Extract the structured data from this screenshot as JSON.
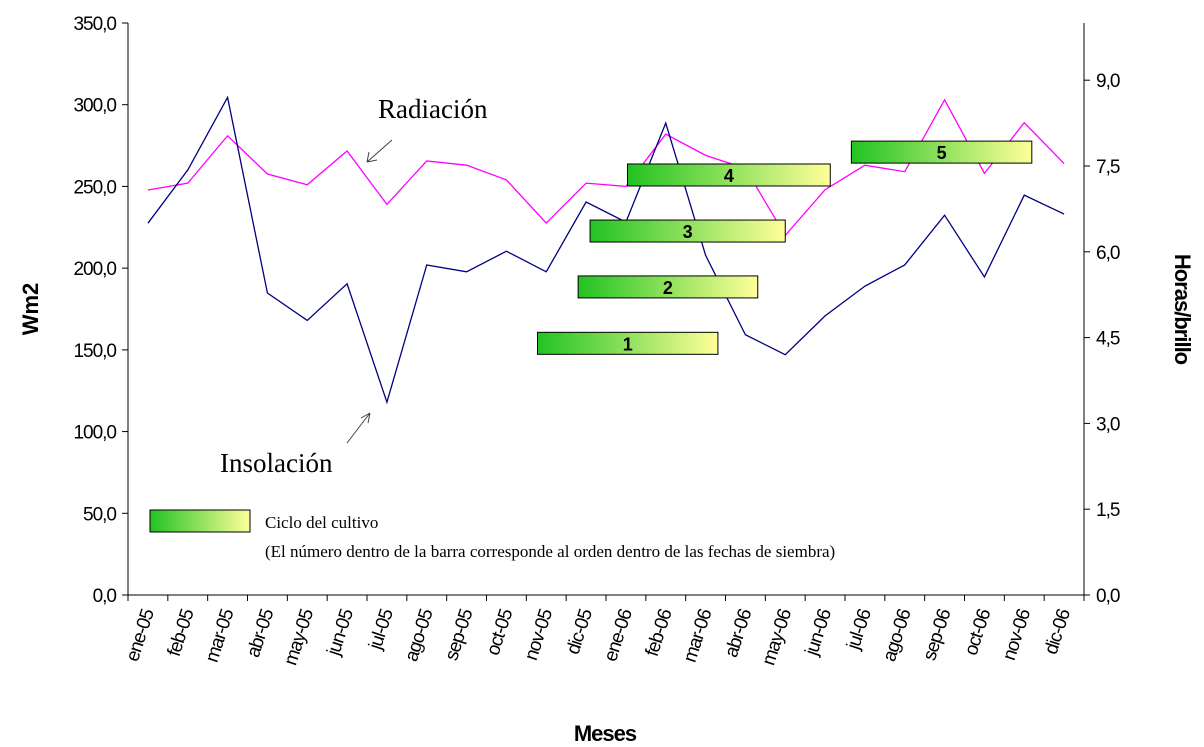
{
  "chart_data": {
    "type": "line",
    "y_label": "Wm2",
    "y2_label": "Horas/brillo",
    "x_label": "Meses",
    "categories": [
      "ene-05",
      "feb-05",
      "mar-05",
      "abr-05",
      "may-05",
      "jun-05",
      "jul-05",
      "ago-05",
      "sep-05",
      "oct-05",
      "nov-05",
      "dic-05",
      "ene-06",
      "feb-06",
      "mar-06",
      "abr-06",
      "may-06",
      "jun-06",
      "jul-06",
      "ago-06",
      "sep-06",
      "oct-06",
      "nov-06",
      "dic-06"
    ],
    "series": [
      {
        "name": "Radiación",
        "color": "#ff00ff",
        "axis": "y",
        "values": [
          247.8,
          252,
          281,
          257.6,
          251,
          271.7,
          239,
          265.6,
          263,
          254,
          227.6,
          252,
          250,
          282,
          269,
          261,
          220,
          248,
          263,
          259,
          303,
          258,
          289,
          264
        ]
      },
      {
        "name": "Insolación",
        "color": "#000080",
        "axis": "y2",
        "values": [
          6.5,
          7.43,
          8.7,
          5.28,
          4.8,
          5.44,
          3.37,
          5.77,
          5.65,
          6.01,
          5.65,
          6.87,
          6.52,
          8.25,
          5.94,
          4.55,
          4.2,
          4.88,
          5.4,
          5.77,
          6.64,
          5.56,
          6.99,
          6.66
        ]
      }
    ],
    "ylim": [
      0,
      350
    ],
    "yticks": [
      {
        "value": 0,
        "label": "0,0"
      },
      {
        "value": 50,
        "label": "50,0"
      },
      {
        "value": 100,
        "label": "100,0"
      },
      {
        "value": 150,
        "label": "150,0"
      },
      {
        "value": 200,
        "label": "200,0"
      },
      {
        "value": 250,
        "label": "250,0"
      },
      {
        "value": 300,
        "label": "300,0"
      },
      {
        "value": 350,
        "label": "350,0"
      }
    ],
    "y2lim": [
      0,
      10
    ],
    "y2ticks": [
      {
        "value": 0,
        "label": "0,0"
      },
      {
        "value": 1.5,
        "label": "1,5"
      },
      {
        "value": 3,
        "label": "3,0"
      },
      {
        "value": 4.5,
        "label": "4,5"
      },
      {
        "value": 6,
        "label": "6,0"
      },
      {
        "value": 7.5,
        "label": "7,5"
      },
      {
        "value": 9,
        "label": "9,0"
      }
    ],
    "cycles": [
      {
        "label": "1",
        "start": 9.78,
        "end": 14.31,
        "level": 154
      },
      {
        "label": "2",
        "start": 10.8,
        "end": 15.31,
        "level": 188.5
      },
      {
        "label": "3",
        "start": 11.1,
        "end": 16.0,
        "level": 222.7
      },
      {
        "label": "4",
        "start": 12.04,
        "end": 17.13,
        "level": 257
      },
      {
        "label": "5",
        "start": 17.66,
        "end": 22.19,
        "level": 271
      }
    ],
    "cycle_colors": [
      "#22c322",
      "#ffff99"
    ],
    "legend_title": "Ciclo del cultivo",
    "legend_note": "(El número dentro de la barra corresponde al orden dentro de las fechas de siembra)"
  }
}
